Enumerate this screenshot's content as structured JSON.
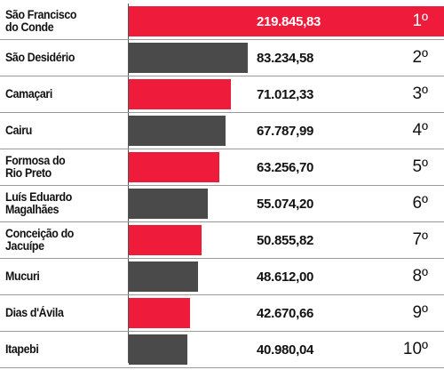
{
  "chart_data": {
    "type": "bar",
    "orientation": "horizontal",
    "title": "",
    "xlabel": "",
    "ylabel": "",
    "categories": [
      "São Francisco\ndo Conde",
      "São Desidério",
      "Camaçari",
      "Cairu",
      "Formosa do\nRio Preto",
      "Luís Eduardo\nMagalhães",
      "Conceição do\nJacuípe",
      "Mucuri",
      "Dias d'Ávila",
      "Itapebi"
    ],
    "values": [
      219845.83,
      83234.58,
      71012.33,
      67787.99,
      63256.7,
      55074.2,
      50855.82,
      48612.0,
      42670.66,
      40980.04
    ],
    "value_labels": [
      "219.845,83",
      "83.234,58",
      "71.012,33",
      "67.787,99",
      "63.256,70",
      "55.074,20",
      "50.855,82",
      "48.612,00",
      "42.670,66",
      "40.980,04"
    ],
    "ranks": [
      "1º",
      "2º",
      "3º",
      "4º",
      "5º",
      "6º",
      "7º",
      "8º",
      "9º",
      "10º"
    ],
    "colors": [
      "#ee1b3b",
      "#4a4a4a",
      "#ee1b3b",
      "#4a4a4a",
      "#ee1b3b",
      "#4a4a4a",
      "#ee1b3b",
      "#4a4a4a",
      "#ee1b3b",
      "#4a4a4a"
    ],
    "xlim": [
      0,
      219845.83
    ],
    "grid": false,
    "legend": "none"
  }
}
